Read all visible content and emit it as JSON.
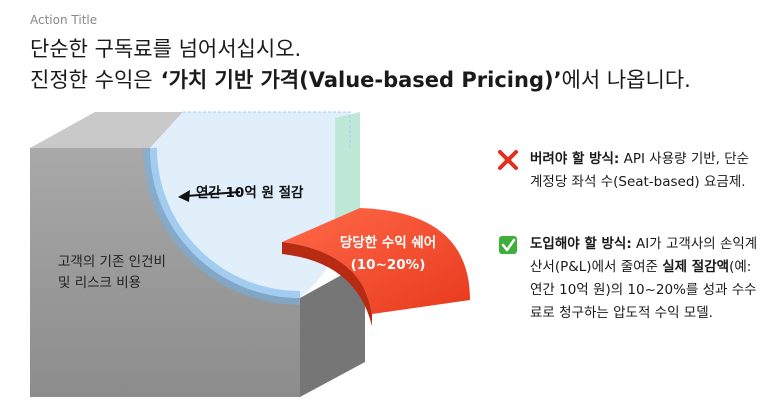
{
  "header": {
    "label": "Action Title",
    "title_line1": "단순한 구독료를 넘어서십시오.",
    "title_line2": {
      "before": "진정한 수익은",
      "emphasis": "‘가치 기반 가격(Value-based Pricing)’",
      "after": "에서 나옵니다."
    }
  },
  "diagram": {
    "savings_label": "연간 10억 원 절감",
    "base_label": [
      "고객의 기존 인건비",
      "및 리스크 비용"
    ],
    "share_label": [
      "당당한 수익 쉐어",
      "(10~20%)"
    ]
  },
  "points": [
    {
      "heading": "버려야 할 방식:",
      "text": "API 사용량 기반, 단순 계정당 좌석 수(Seat-based) 요금제."
    },
    {
      "heading": "도입해야 할 방식:",
      "text_before": "AI가 고객사의 손익계산서(P&L)에서 줄여준",
      "emphasis": "실제 절감액",
      "text_after": "(예: 연간 10억 원)의 10~20%를 성과 수수료로 청구하는 압도적 수익 모델."
    }
  ]
}
